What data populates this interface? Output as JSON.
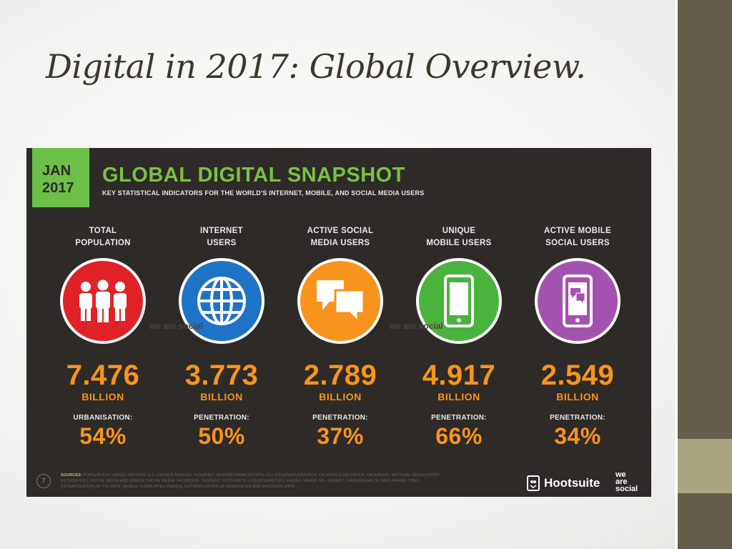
{
  "slide": {
    "title": "Digital in 2017: Global Overview."
  },
  "infographic": {
    "date_month": "JAN",
    "date_year": "2017",
    "title": "GLOBAL DIGITAL SNAPSHOT",
    "subtitle": "KEY STATISTICAL INDICATORS FOR THE WORLD'S INTERNET, MOBILE, AND SOCIAL MEDIA USERS",
    "watermark": "we are social",
    "columns": [
      {
        "label_line1": "TOTAL",
        "label_line2": "POPULATION",
        "icon": "people-icon",
        "color": "#e02227",
        "value": "7.476",
        "unit": "BILLION",
        "metric_label": "URBANISATION:",
        "metric_value": "54%"
      },
      {
        "label_line1": "INTERNET",
        "label_line2": "USERS",
        "icon": "globe-icon",
        "color": "#1f73c7",
        "value": "3.773",
        "unit": "BILLION",
        "metric_label": "PENETRATION:",
        "metric_value": "50%"
      },
      {
        "label_line1": "ACTIVE SOCIAL",
        "label_line2": "MEDIA USERS",
        "icon": "chat-bubbles-icon",
        "color": "#f7941d",
        "value": "2.789",
        "unit": "BILLION",
        "metric_label": "PENETRATION:",
        "metric_value": "37%"
      },
      {
        "label_line1": "UNIQUE",
        "label_line2": "MOBILE USERS",
        "icon": "mobile-phone-icon",
        "color": "#4ab33e",
        "value": "4.917",
        "unit": "BILLION",
        "metric_label": "PENETRATION:",
        "metric_value": "66%"
      },
      {
        "label_line1": "ACTIVE MOBILE",
        "label_line2": "SOCIAL USERS",
        "icon": "mobile-chat-icon",
        "color": "#a452b0",
        "value": "2.549",
        "unit": "BILLION",
        "metric_label": "PENETRATION:",
        "metric_value": "34%"
      }
    ],
    "footer": {
      "page_number": "7",
      "sources_label": "SOURCES:",
      "sources_text": "POPULATION: UNITED NATIONS; U.S. CENSUS BUREAU; INTERNET: INTERNETWORLDSTATS; ITU; INTERNETLIVESTATS; CIA WORLD FACTBOOK; FACEBOOK; NATIONAL REGULATORY AUTHORITIES; SOCIAL MEDIA AND MOBILE SOCIAL MEDIA: FACEBOOK; TENCENT; VKONTAKTE; LIVEINTERNET.RU; KAKAO; NAVER; NIL; AGENCY; CAFEBAZAAR.IR; SIMILARWEB; DING; EXTRAPOLATION OF TGI DATA; MOBILE: GSMA INTELLIGENCE; EXTRAPOLATION OF EMARKETER AND ERICSSON DATA.",
      "hootsuite": "Hootsuite",
      "wearesocial_1": "we",
      "wearesocial_2": "are",
      "wearesocial_3": "social"
    }
  }
}
